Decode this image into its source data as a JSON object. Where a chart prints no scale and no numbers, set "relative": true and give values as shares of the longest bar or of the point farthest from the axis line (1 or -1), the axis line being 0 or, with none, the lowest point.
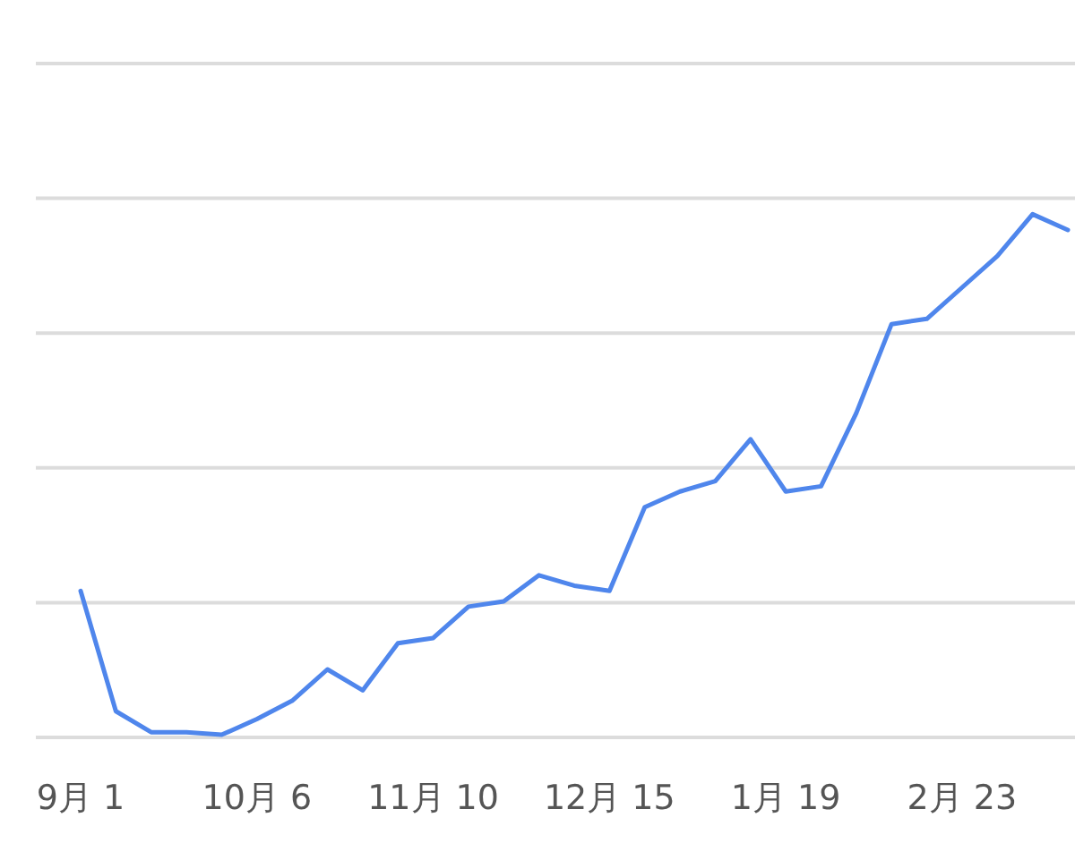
{
  "chart_data": {
    "type": "line",
    "relative": true,
    "grid": "y",
    "marker": "none",
    "line_style": "solid",
    "categories": [
      "9月 1",
      null,
      null,
      null,
      null,
      "10月 6",
      null,
      null,
      null,
      null,
      "11月 10",
      null,
      null,
      null,
      null,
      "12月 15",
      null,
      null,
      null,
      null,
      "1月 19",
      null,
      null,
      null,
      null,
      "2月 23",
      null,
      null,
      null
    ],
    "series": [
      {
        "color": "#4f86ec",
        "values": [
          0.28,
          0.05,
          0.01,
          0.01,
          0.005,
          0.035,
          0.07,
          0.13,
          0.09,
          0.18,
          0.19,
          0.25,
          0.26,
          0.31,
          0.29,
          0.28,
          0.44,
          0.47,
          0.49,
          0.57,
          0.47,
          0.48,
          0.62,
          0.79,
          0.8,
          0.86,
          0.92,
          1,
          0.97
        ]
      }
    ]
  }
}
